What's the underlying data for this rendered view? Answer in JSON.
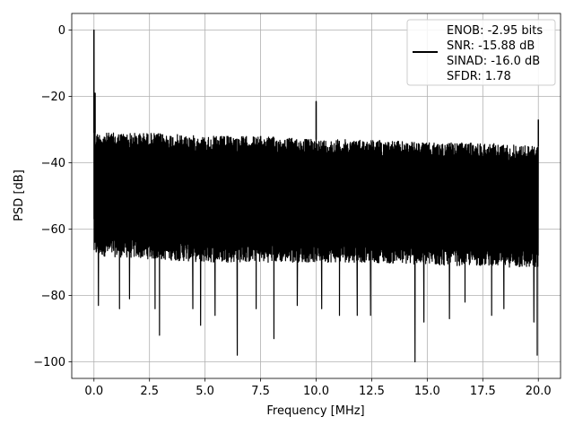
{
  "chart_data": {
    "type": "line",
    "title": "",
    "xlabel": "Frequency [MHz]",
    "ylabel": "PSD [dB]",
    "xlim": [
      -1.0,
      21.0
    ],
    "ylim": [
      -105,
      5
    ],
    "x_ticks": [
      0.0,
      2.5,
      5.0,
      7.5,
      10.0,
      12.5,
      15.0,
      17.5,
      20.0
    ],
    "x_tick_labels": [
      "0.0",
      "2.5",
      "5.0",
      "7.5",
      "10.0",
      "12.5",
      "15.0",
      "17.5",
      "20.0"
    ],
    "y_ticks": [
      0,
      -20,
      -40,
      -60,
      -80,
      -100
    ],
    "y_tick_labels": [
      "0",
      "−20",
      "−40",
      "−60",
      "−80",
      "−100"
    ],
    "grid": true,
    "legend": {
      "placement": "top-right",
      "entries": [
        "ENOB: -2.95 bits",
        "SNR: -15.88 dB",
        "SINAD: -16.0 dB",
        "SFDR: 1.78"
      ]
    },
    "series": [
      {
        "color": "#000000",
        "noise_band": {
          "x_range": [
            0.0,
            20.0
          ],
          "upper_envelope_db": {
            "x": [
              0.0,
              2.5,
              5.0,
              7.5,
              10.0,
              12.5,
              15.0,
              17.5,
              20.0
            ],
            "y": [
              -31,
              -31,
              -32,
              -32,
              -33,
              -33,
              -34,
              -34,
              -35
            ]
          },
          "lower_envelope_db": {
            "x": [
              0.0,
              2.5,
              5.0,
              7.5,
              10.0,
              12.5,
              15.0,
              17.5,
              20.0
            ],
            "y": [
              -68,
              -69,
              -70,
              -70,
              -70,
              -70,
              -71,
              -71,
              -72
            ]
          }
        },
        "peaks": [
          {
            "x": 0.0,
            "y": 0
          },
          {
            "x": 0.05,
            "y": -19
          },
          {
            "x": 10.0,
            "y": -21.5
          },
          {
            "x": 20.0,
            "y": -27
          }
        ],
        "dips": [
          {
            "x": 0.2,
            "y": -83
          },
          {
            "x": 1.15,
            "y": -84
          },
          {
            "x": 1.6,
            "y": -81
          },
          {
            "x": 2.75,
            "y": -84
          },
          {
            "x": 2.95,
            "y": -92
          },
          {
            "x": 4.45,
            "y": -84
          },
          {
            "x": 4.8,
            "y": -89
          },
          {
            "x": 5.45,
            "y": -86
          },
          {
            "x": 6.45,
            "y": -98
          },
          {
            "x": 7.3,
            "y": -84
          },
          {
            "x": 8.1,
            "y": -93
          },
          {
            "x": 9.15,
            "y": -83
          },
          {
            "x": 10.25,
            "y": -84
          },
          {
            "x": 11.05,
            "y": -86
          },
          {
            "x": 11.85,
            "y": -86
          },
          {
            "x": 12.45,
            "y": -86
          },
          {
            "x": 14.45,
            "y": -100
          },
          {
            "x": 14.85,
            "y": -88
          },
          {
            "x": 16.0,
            "y": -87
          },
          {
            "x": 16.7,
            "y": -82
          },
          {
            "x": 17.9,
            "y": -86
          },
          {
            "x": 18.45,
            "y": -84
          },
          {
            "x": 19.8,
            "y": -88
          },
          {
            "x": 19.95,
            "y": -98
          }
        ]
      }
    ]
  }
}
